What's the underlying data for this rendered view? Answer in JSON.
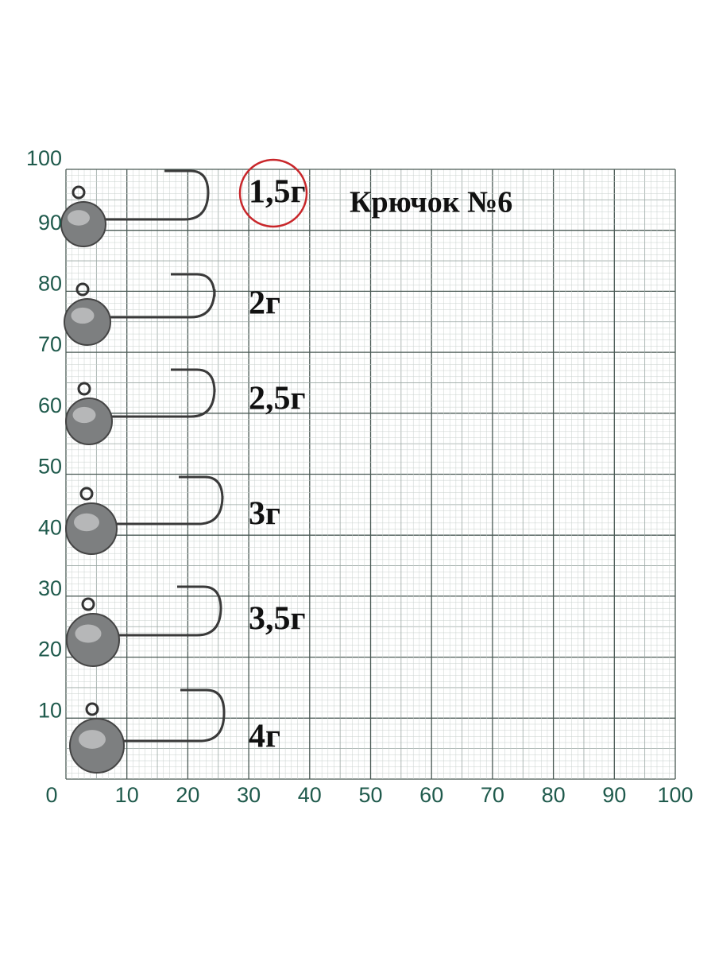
{
  "title": "Крючок №6",
  "x_axis_labels": [
    "0",
    "10",
    "20",
    "30",
    "40",
    "50",
    "60",
    "70",
    "80",
    "90",
    "100"
  ],
  "y_axis_labels": [
    "100",
    "90",
    "80",
    "70",
    "60",
    "50",
    "40",
    "30",
    "20",
    "10"
  ],
  "weights": [
    "1,5г",
    "2г",
    "2,5г",
    "3г",
    "3,5г",
    "4г"
  ]
}
